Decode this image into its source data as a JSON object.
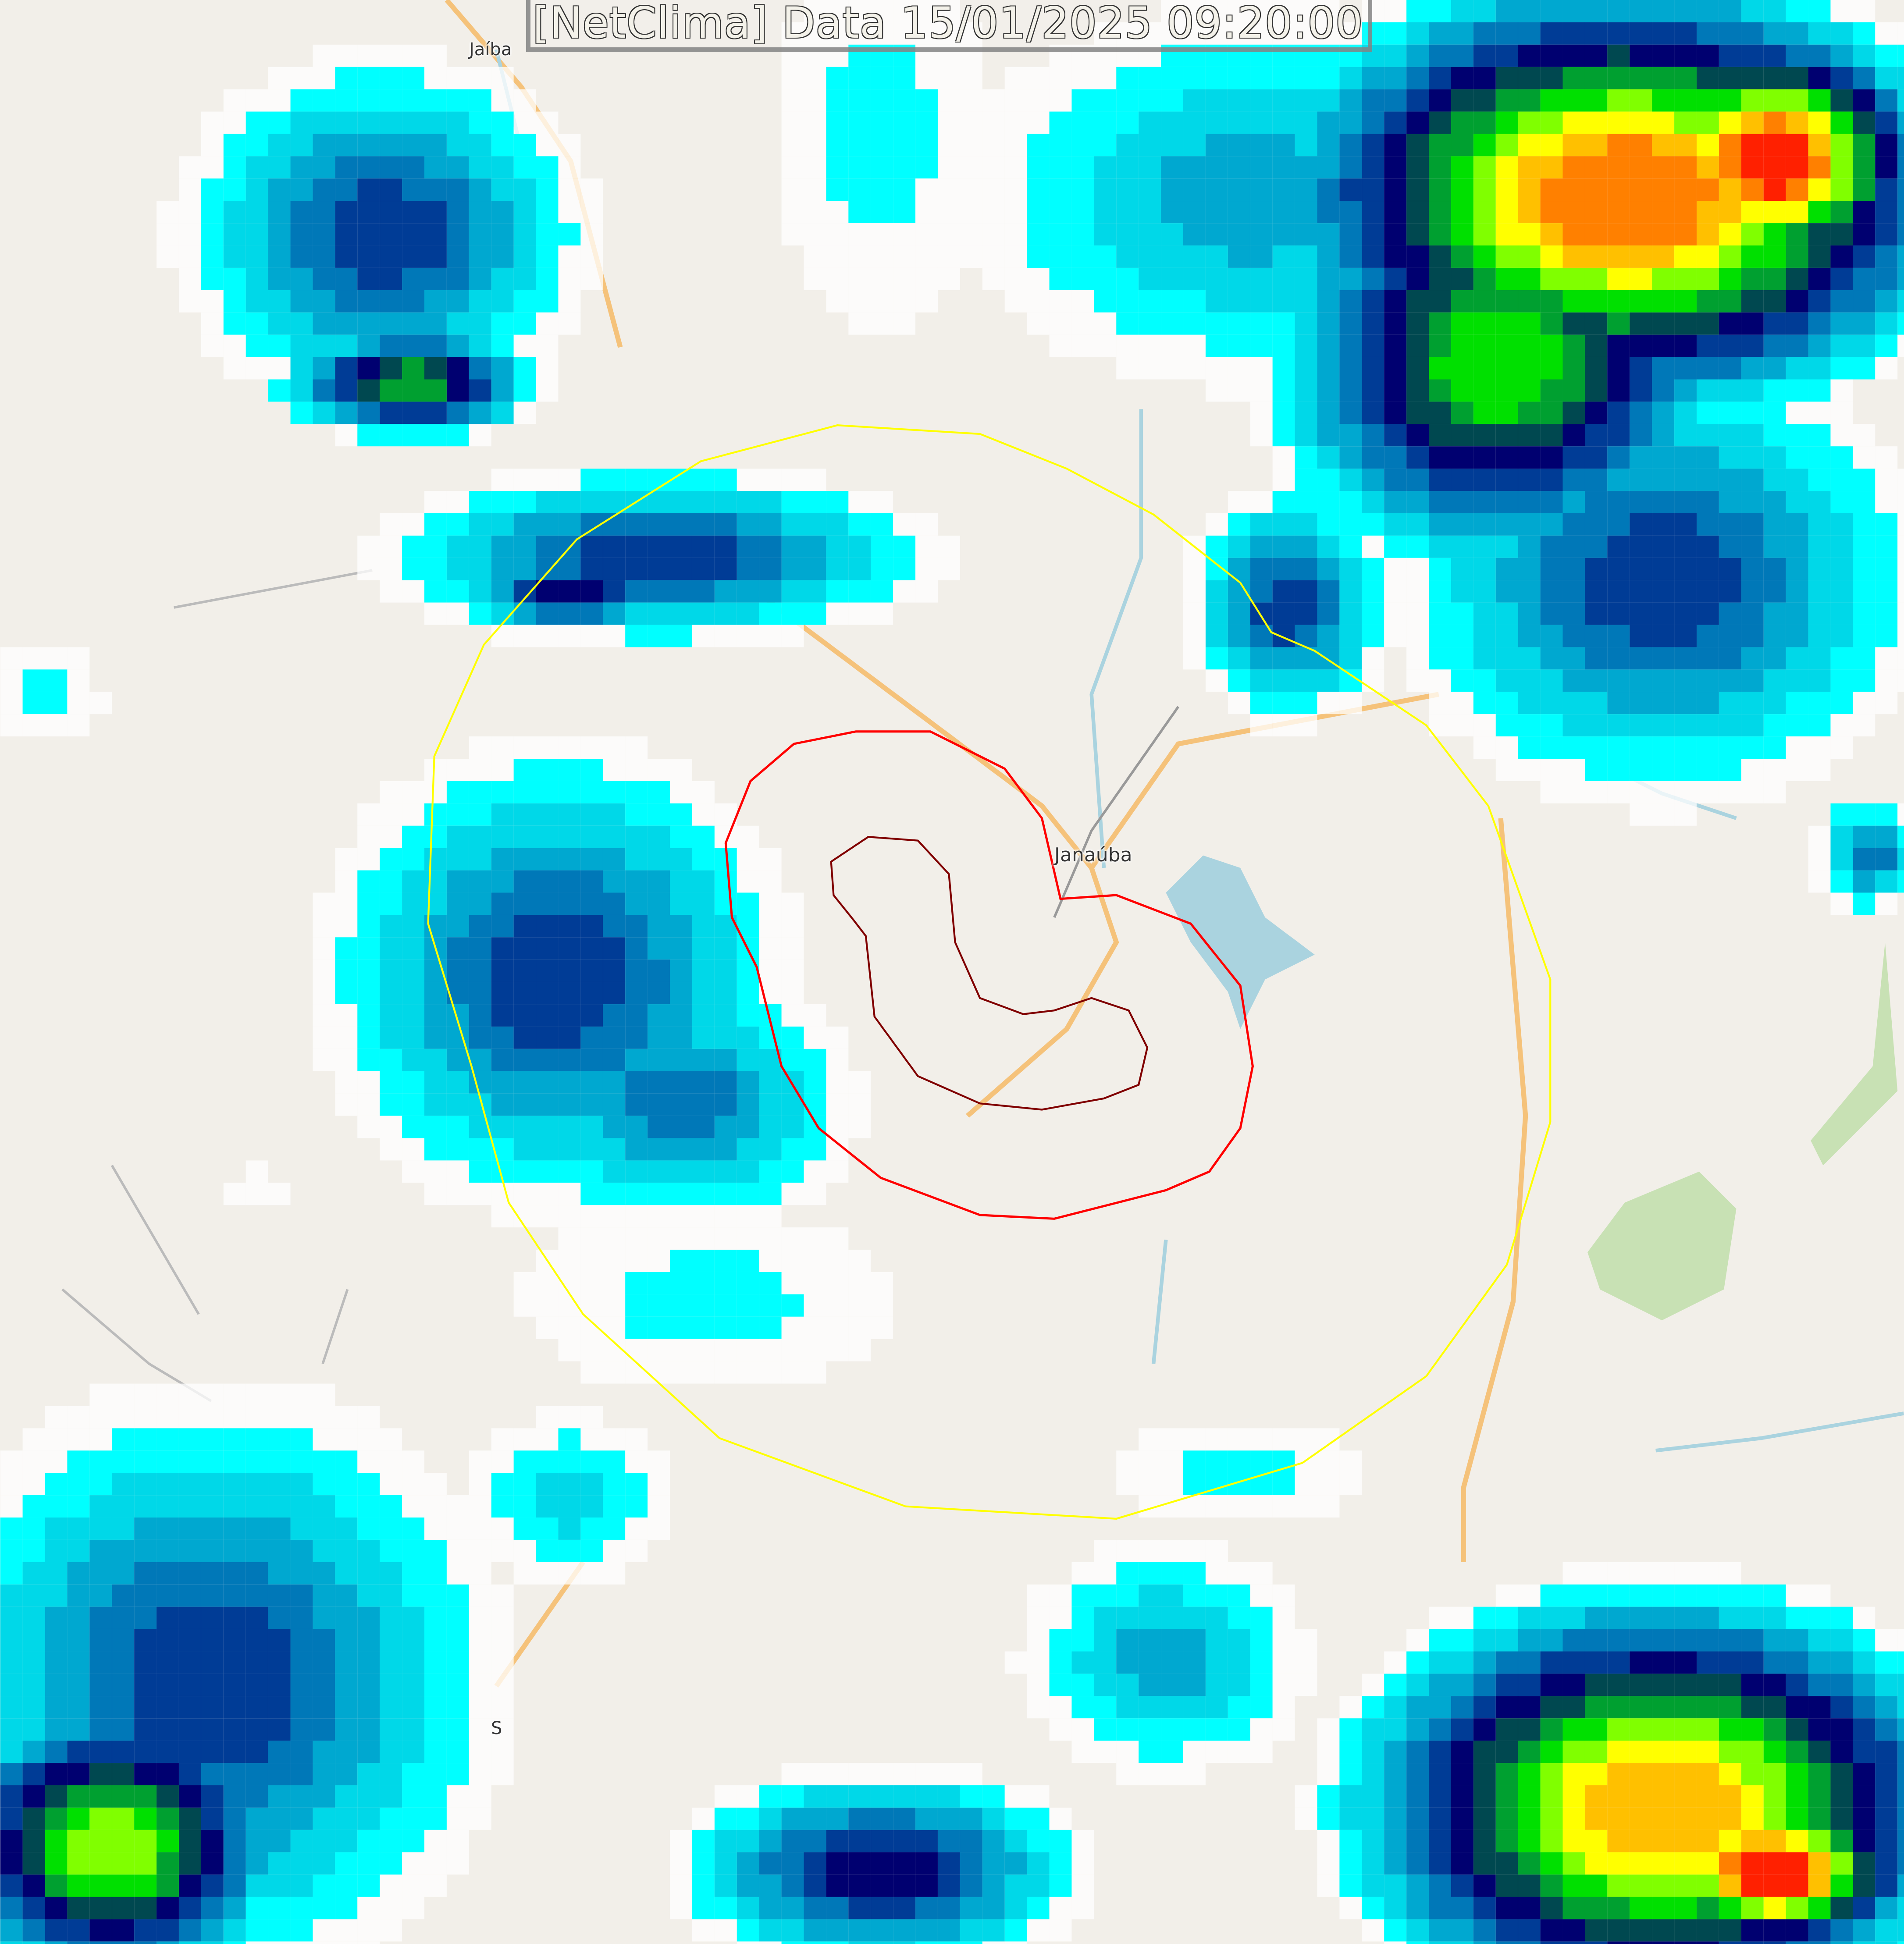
{
  "title": "[NetClima] Data 15/01/2025 09:20:00",
  "places": {
    "jaiba": "Jaíba",
    "janauba": "Janaúba",
    "s_label": "S"
  },
  "colors": {
    "land": "#f2efe9",
    "road": "#f5c27a",
    "river": "#aad3df",
    "park": "#c8e1b4",
    "radius_ring": "#ffff00",
    "outer_contour": "#ff0000",
    "inner_contour": "#7a0000",
    "radar_scale": [
      "#ffffff",
      "#00ffff",
      "#00d8e8",
      "#00a8d0",
      "#0078b8",
      "#003c96",
      "#000070",
      "#004850",
      "#00a030",
      "#00e000",
      "#80ff00",
      "#ffff00",
      "#ffc000",
      "#ff8000",
      "#ff2000",
      "#c00000"
    ]
  }
}
